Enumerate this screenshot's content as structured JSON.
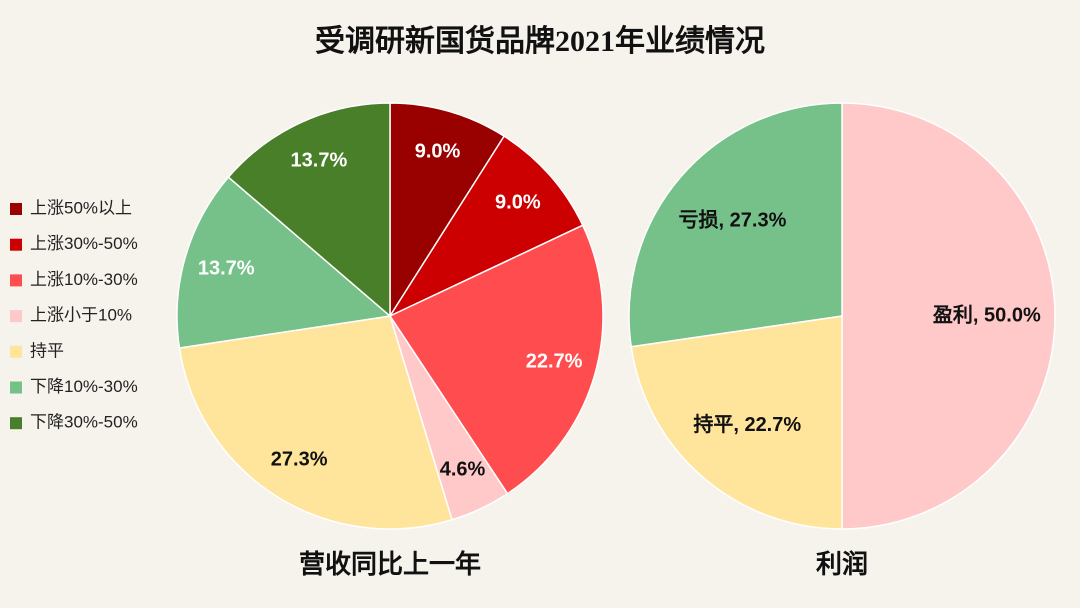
{
  "title": "受调研新国货品牌2021年业绩情况",
  "chart_data": [
    {
      "type": "pie",
      "title": "营收同比上一年",
      "categories": [
        "上涨50%以上",
        "上涨30%-50%",
        "上涨10%-30%",
        "上涨小于10%",
        "持平",
        "下降10%-30%",
        "下降30%-50%"
      ],
      "values": [
        9.0,
        9.0,
        22.7,
        4.6,
        27.3,
        13.7,
        13.7
      ],
      "value_labels": [
        "9.0%",
        "9.0%",
        "22.7%",
        "4.6%",
        "27.3%",
        "13.7%",
        "13.7%"
      ],
      "colors": [
        "#990000",
        "#cc0000",
        "#ff4d4f",
        "#ffc9c9",
        "#ffe49c",
        "#76c08a",
        "#4a7f2a"
      ],
      "legend": "left"
    },
    {
      "type": "pie",
      "title": "利润",
      "values": [
        50.0,
        22.7,
        27.3
      ],
      "value_labels": [
        "盈利, 50.0%",
        "持平, 22.7%",
        "亏损, 27.3%"
      ],
      "colors": [
        "#ffc9c9",
        "#ffe49c",
        "#76c08a"
      ]
    }
  ]
}
